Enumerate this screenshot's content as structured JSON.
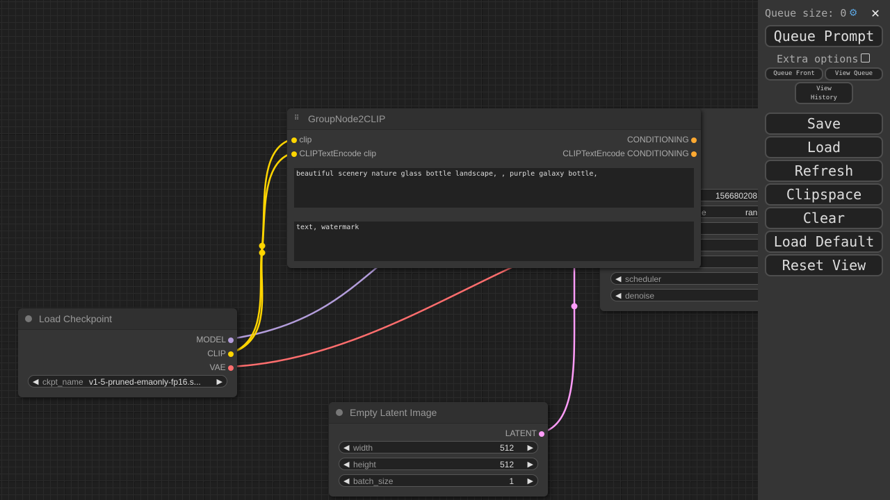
{
  "menu": {
    "queue_size": "Queue size: 0",
    "queue_prompt": "Queue Prompt",
    "extra_options": "Extra options",
    "queue_front": "Queue Front",
    "view_queue": "View Queue",
    "view_history_1": "View",
    "view_history_2": "History",
    "buttons": [
      "Save",
      "Load",
      "Refresh",
      "Clipspace",
      "Clear",
      "Load Default",
      "Reset View"
    ]
  },
  "group_node": {
    "title": "GroupNode2CLIP",
    "inputs": [
      "clip",
      "CLIPTextEncode clip"
    ],
    "outputs": [
      "CONDITIONING",
      "CLIPTextEncode CONDITIONING"
    ],
    "positive_text": "beautiful scenery nature glass bottle landscape, , purple galaxy bottle,",
    "negative_text": "text, watermark"
  },
  "ksampler": {
    "seed_value": "156680208",
    "control_label": "e",
    "control_value": "ran",
    "scheduler": "scheduler",
    "denoise": "denoise"
  },
  "load_checkpoint": {
    "title": "Load Checkpoint",
    "outputs": [
      "MODEL",
      "CLIP",
      "VAE"
    ],
    "ckpt_label": "ckpt_name",
    "ckpt_value": "v1-5-pruned-emaonly-fp16.s..."
  },
  "empty_latent": {
    "title": "Empty Latent Image",
    "output": "LATENT",
    "widgets": [
      {
        "label": "width",
        "value": "512"
      },
      {
        "label": "height",
        "value": "512"
      },
      {
        "label": "batch_size",
        "value": "1"
      }
    ]
  },
  "colors": {
    "model": "#b39ddb",
    "clip": "#ffd500",
    "vae": "#ff6e6e",
    "latent": "#ff9cf9",
    "conditioning": "#ffa931"
  }
}
